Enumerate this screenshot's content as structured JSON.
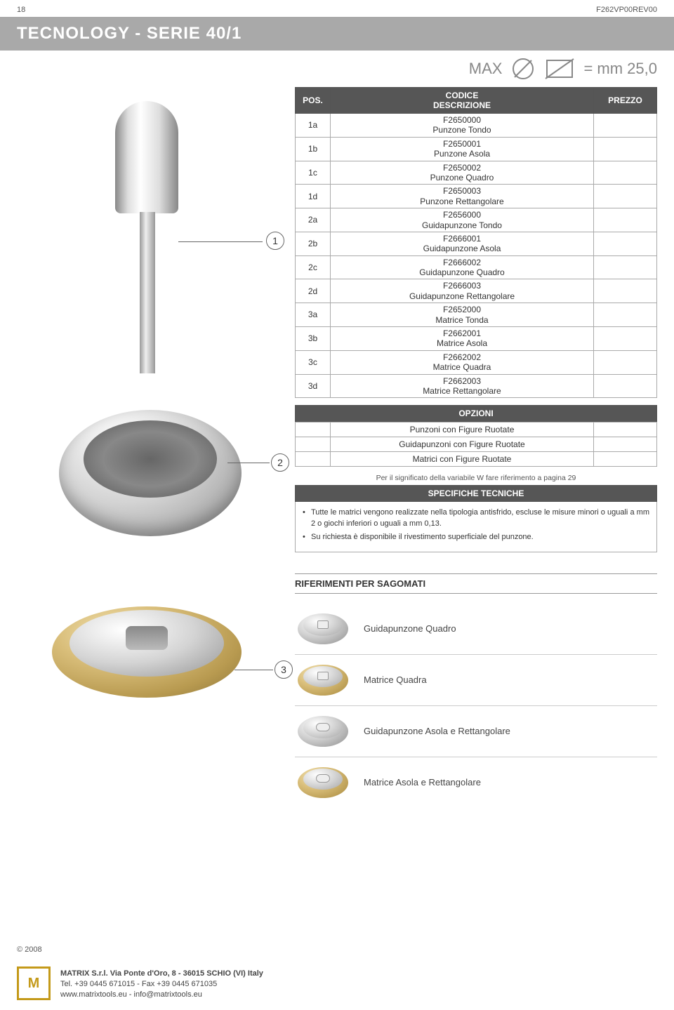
{
  "header": {
    "page_num": "18",
    "doc_code": "F262VP00REV00"
  },
  "title": "TECNOLOGY - SERIE 40/1",
  "maxbar": {
    "label_left": "MAX",
    "label_right": "= mm 25,0"
  },
  "table": {
    "col_pos": "POS.",
    "col_code": "CODICE",
    "col_desc": "DESCRIZIONE",
    "col_price": "PREZZO",
    "rows": [
      {
        "pos": "1a",
        "code": "F2650000",
        "desc": "Punzone Tondo"
      },
      {
        "pos": "1b",
        "code": "F2650001",
        "desc": "Punzone Asola"
      },
      {
        "pos": "1c",
        "code": "F2650002",
        "desc": "Punzone Quadro"
      },
      {
        "pos": "1d",
        "code": "F2650003",
        "desc": "Punzone Rettangolare"
      },
      {
        "pos": "2a",
        "code": "F2656000",
        "desc": "Guidapunzone Tondo"
      },
      {
        "pos": "2b",
        "code": "F2666001",
        "desc": "Guidapunzone Asola"
      },
      {
        "pos": "2c",
        "code": "F2666002",
        "desc": "Guidapunzone Quadro"
      },
      {
        "pos": "2d",
        "code": "F2666003",
        "desc": "Guidapunzone Rettangolare"
      },
      {
        "pos": "3a",
        "code": "F2652000",
        "desc": "Matrice Tonda"
      },
      {
        "pos": "3b",
        "code": "F2662001",
        "desc": "Matrice Asola"
      },
      {
        "pos": "3c",
        "code": "F2662002",
        "desc": "Matrice Quadra"
      },
      {
        "pos": "3d",
        "code": "F2662003",
        "desc": "Matrice Rettangolare"
      }
    ]
  },
  "opzioni": {
    "header": "OPZIONI",
    "rows": [
      "Punzoni con Figure Ruotate",
      "Guidapunzoni con Figure Ruotate",
      "Matrici con Figure Ruotate"
    ]
  },
  "note_ref": "Per il significato della variabile W fare riferimento a pagina 29",
  "spec_tech": {
    "header": "SPECIFICHE TECNICHE",
    "bullets": [
      "Tutte le matrici vengono realizzate nella tipologia antisfrido, escluse le misure minori o uguali a mm 2 o giochi inferiori o uguali a mm 0,13.",
      "Su richiesta è disponibile il rivestimento superficiale del punzone."
    ]
  },
  "callouts": {
    "c1": "1",
    "c2": "2",
    "c3": "3"
  },
  "rif": {
    "header": "RIFERIMENTI PER SAGOMATI",
    "items": [
      "Guidapunzone Quadro",
      "Matrice Quadra",
      "Guidapunzone Asola e Rettangolare",
      "Matrice Asola e Rettangolare"
    ]
  },
  "footer": {
    "copyright": "© 2008",
    "logo": "M",
    "line1": "MATRIX S.r.l. Via Ponte d'Oro, 8 - 36015 SCHIO (VI) Italy",
    "line2": "Tel. +39 0445 671015 - Fax +39 0445 671035",
    "line3": "www.matrixtools.eu - info@matrixtools.eu"
  },
  "colors": {
    "header_bg": "#565656",
    "header_fg": "#ffffff",
    "titlebar_bg": "#a9a9a9",
    "border": "#aaaaaa",
    "gold1": "#d9be7a",
    "gold2": "#b89a50"
  }
}
